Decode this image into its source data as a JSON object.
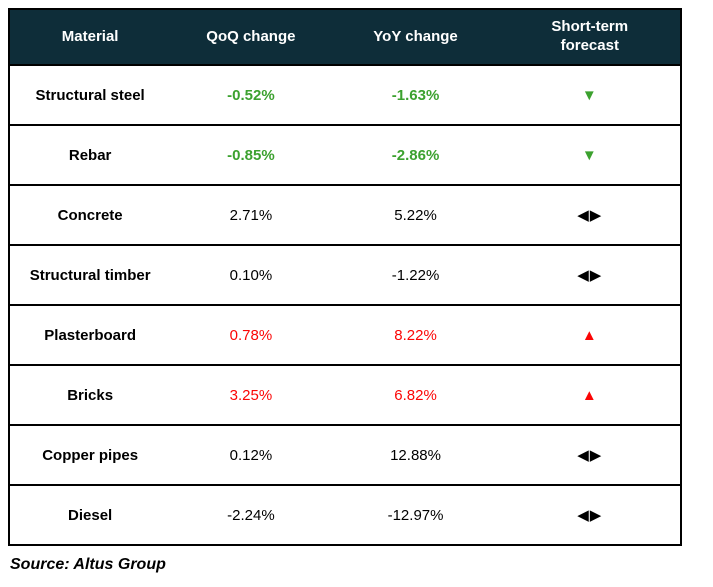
{
  "colors": {
    "header_bg": "#0e2d39",
    "header_text": "#ffffff",
    "positive_decline_green": "#3ca12f",
    "increase_red": "#fb0505",
    "neutral_black": "#000000",
    "border_black": "#000000"
  },
  "icons": {
    "down": "▼",
    "up": "▲",
    "neutral": "◀▶"
  },
  "chart_data": {
    "type": "table",
    "columns": [
      "Material",
      "QoQ change",
      "YoY change",
      "Short-term forecast"
    ],
    "rows": [
      {
        "material": "Structural steel",
        "qoq": "-0.52%",
        "yoy": "-1.63%",
        "forecast": "down",
        "forecast_icon": "▼"
      },
      {
        "material": "Rebar",
        "qoq": "-0.85%",
        "yoy": "-2.86%",
        "forecast": "down",
        "forecast_icon": "▼"
      },
      {
        "material": "Concrete",
        "qoq": "2.71%",
        "yoy": "5.22%",
        "forecast": "neutral",
        "forecast_icon": "◀▶"
      },
      {
        "material": "Structural timber",
        "qoq": "0.10%",
        "yoy": "-1.22%",
        "forecast": "neutral",
        "forecast_icon": "◀▶"
      },
      {
        "material": "Plasterboard",
        "qoq": "0.78%",
        "yoy": "8.22%",
        "forecast": "up",
        "forecast_icon": "▲"
      },
      {
        "material": "Bricks",
        "qoq": "3.25%",
        "yoy": "6.82%",
        "forecast": "up",
        "forecast_icon": "▲"
      },
      {
        "material": "Copper pipes",
        "qoq": "0.12%",
        "yoy": "12.88%",
        "forecast": "neutral",
        "forecast_icon": "◀▶"
      },
      {
        "material": "Diesel",
        "qoq": "-2.24%",
        "yoy": "-12.97%",
        "forecast": "neutral",
        "forecast_icon": "◀▶"
      }
    ]
  },
  "source_note": "Source: Altus Group"
}
